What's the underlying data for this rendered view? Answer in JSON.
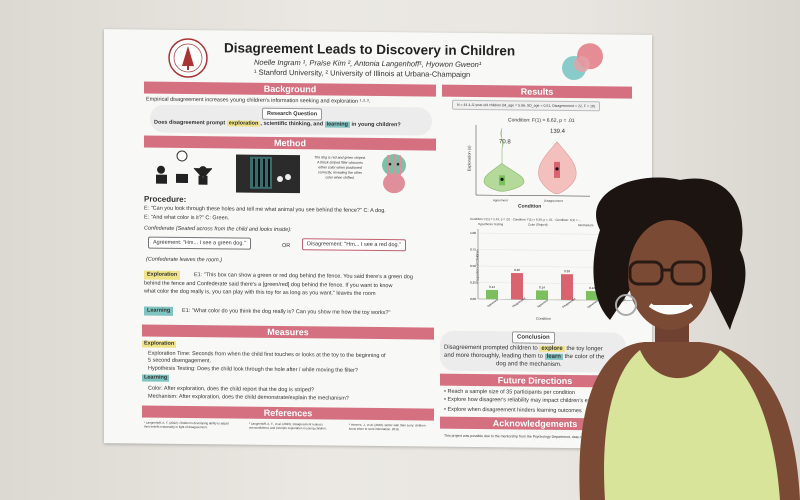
{
  "poster": {
    "title": "Disagreement Leads to Discovery in Children",
    "authors": "Noelle Ingram ¹, Praise Kim ², Antonia Langenhoff¹, Hyowon Gweon¹",
    "affiliations": "¹ Stanford University, ² University of Illinois at Urbana-Champaign",
    "background": {
      "header": "Background",
      "text": "Empirical disagreement increases young children's information seeking and exploration ¹·²·³.",
      "rq_label": "Research Question",
      "rq_pre": "Does disagreement prompt ",
      "rq_w1": "exploration",
      "rq_mid": ", scientific thinking, and ",
      "rq_w2": "learning",
      "rq_post": " in young children?"
    },
    "method": {
      "header": "Method",
      "fig_labels": [
        "Experimenter",
        "Confederate",
        "Child"
      ],
      "dog_caption": "The dog is red and green striped. A block-striped filter obscures either color when positioned correctly, revealing the other color when shifted.",
      "procedure": "Procedure:",
      "line1": "E: \"Can you look through these holes and tell me what animal you see behind the fence?\" C: A dog.",
      "line2": "E: \"And what color is it?\" C: Green.",
      "confederate": "Confederate (Seated across from the child and looks inside):",
      "agreement": "Agreement: \"Hm... I see a green dog.\"",
      "or": "OR",
      "disagreement": "Disagreement: \"Hm... I see a red dog.\"",
      "leaves": "(Confederate leaves the room.)",
      "exploration_tag": "Exploration",
      "exploration_text1": "E1: \"This box can show a green or red dog behind the fence. You said there's a green dog",
      "exploration_text2": "behind the fence and Confederate said there's a [green/red] dog behind the fence. If you want to know",
      "exploration_text3": "what color the dog really is, you can play with this toy for as long as you want.\" leaves the room",
      "learning_tag": "Learning",
      "learning_text": "E1: \"What color do you think the dog really is? Can you show me how the toy works?\""
    },
    "measures": {
      "header": "Measures",
      "exploration_tag": "Exploration",
      "m1": "Exploration Time: Seconds from when the child first touches or looks at the toy to the beginning of",
      "m1b": "5 second disengagement.",
      "m2": "Hypothesis Testing: Does the child look through the hole after / while moving the filter?",
      "learning_tag": "Learning",
      "m3": "Color: After exploration, does the child report that the dog is striped?",
      "m4": "Mechanism: After exploration, does the child demonstrate/explain the mechanism?"
    },
    "references": {
      "header": "References",
      "items": [
        "¹ Langenhoff, A. F. (2022). Children's developing ability to adjust their beliefs reasonably in light of disagreement.",
        "² Langenhoff, A. F., et al. (2023). Disagreement reduces overconfidence and prompts exploration in young children.",
        "³ Hermes, J., et al. (2016). Better safe than sorry: children know when to seek information. 2018."
      ]
    },
    "results": {
      "header": "Results",
      "sample": "N = 44 4–5-year-old children (M_age = 5.06, SD_age = 0.51, Disagreement = 22, F = 18)",
      "violin_title": "Condition: F(1) = 6.62, p = .01",
      "violin_ylabel": "Exploration (s)",
      "violin_xlabel": "Condition",
      "violin_cats": [
        "Agreement",
        "Disagreement"
      ],
      "violin_means": [
        "70.8",
        "139.4"
      ],
      "violin_yticks": [
        "300",
        "250",
        "200",
        "150",
        "100",
        "50"
      ],
      "bar_title": "Condition: F(1) = 5.43, p = .02 · Condition: F(1) = 6.39, p = .01 · Condition: F(1) = ...",
      "bar_groups": [
        "Hypothesis Testing",
        "Color (Striped)",
        "Mechanism"
      ],
      "bar_ylabel": "Proportion of Children",
      "bar_xlabel": "Condition",
      "bar_yticks": [
        "1.00",
        "0.75",
        "0.50",
        "0.25",
        "0.00"
      ],
      "bar_values": [
        0.14,
        0.4,
        0.14,
        0.39,
        0.14,
        0.33
      ],
      "bar_labels": [
        "0.14",
        "0.40",
        "0.14",
        "0.39",
        "0.14",
        "0.33"
      ],
      "bar_cats": [
        "Agreement",
        "Disagreement",
        "Agreement",
        "Disagreement",
        "Agreement",
        "Disagreement"
      ]
    },
    "conclusion": {
      "label": "Conclusion",
      "pre": "Disagreement prompted children to ",
      "w1": "explore",
      "mid": " the toy longer",
      "line2pre": "and more thoroughly, leading them to ",
      "w2": "learn",
      "line2post": " the color of the",
      "line3": "dog and the mechanism."
    },
    "future": {
      "header": "Future Directions",
      "items": [
        "Reach a sample size of 35 participants per condition",
        "Explore how disagreer's reliability may impact children's exploration.",
        "Explore when disagreement hinders learning outcomes"
      ]
    },
    "ack": {
      "header": "Acknowledgements",
      "text": "This project was possible due to the mentorship from the Psychology Department, data collection, and participants."
    }
  },
  "colors": {
    "header": "#d4707f",
    "wall": "#e6e2dc",
    "green": "#7cbf5e",
    "red": "#d9636f",
    "top": "#d8e49a"
  }
}
